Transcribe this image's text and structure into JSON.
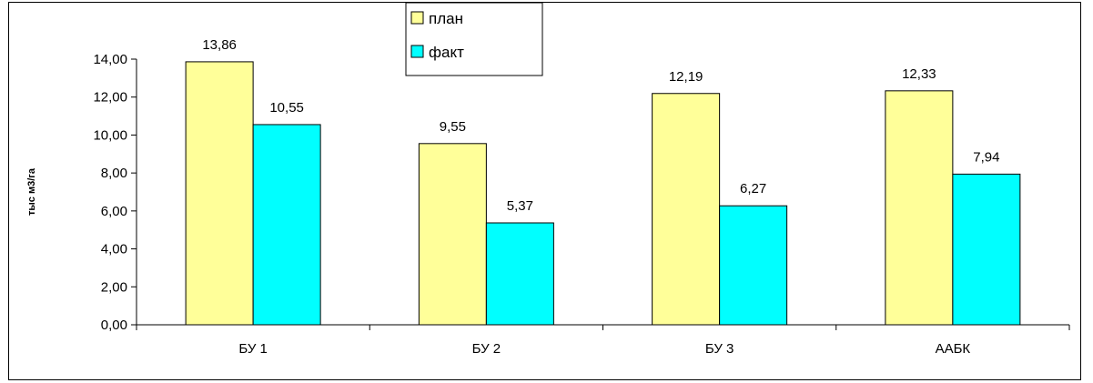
{
  "chart_data": {
    "type": "bar",
    "ylabel": "тыс м3/га",
    "categories": [
      "БУ 1",
      "БУ 2",
      "БУ 3",
      "ААБК"
    ],
    "series": [
      {
        "name": "план",
        "values": [
          13.86,
          9.55,
          12.19,
          12.33
        ],
        "labels": [
          "13,86",
          "9,55",
          "12,19",
          "12,33"
        ]
      },
      {
        "name": "факт",
        "values": [
          10.55,
          5.37,
          6.27,
          7.94
        ],
        "labels": [
          "10,55",
          "5,37",
          "6,27",
          "7,94"
        ]
      }
    ],
    "ylim": [
      0,
      14
    ],
    "yticks": [
      "0,00",
      "2,00",
      "4,00",
      "6,00",
      "8,00",
      "10,00",
      "12,00",
      "14,00"
    ],
    "ystep": 2,
    "legend_position": "top-center",
    "colors": {
      "plan": "#FFFF99",
      "fact": "#00FFFF",
      "outline": "#000000"
    }
  }
}
